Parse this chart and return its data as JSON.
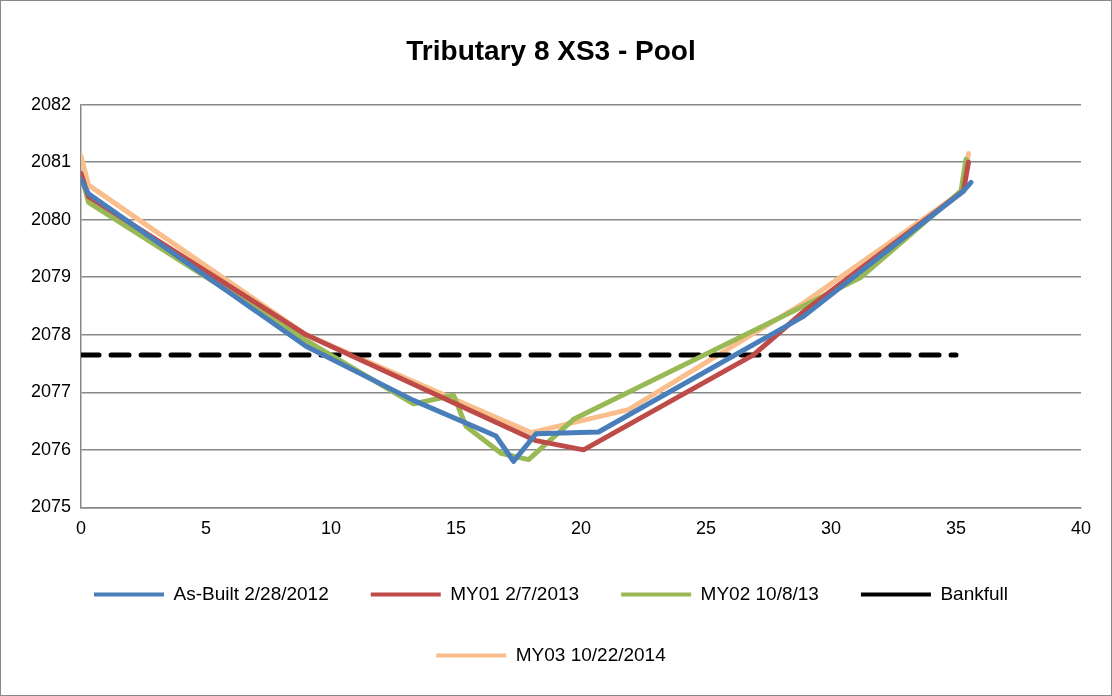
{
  "chart_data": {
    "type": "line",
    "title": "Tributary 8 XS3 - Pool",
    "xlim": [
      0,
      40
    ],
    "xticks": [
      0,
      5,
      10,
      15,
      20,
      25,
      30,
      35,
      40
    ],
    "ylim": [
      2075,
      2082
    ],
    "yticks": [
      2075,
      2076,
      2077,
      2078,
      2079,
      2080,
      2081,
      2082
    ],
    "grid": "y",
    "legend": "bottom",
    "marker": "none",
    "series": [
      {
        "name": "As-Built 2/28/2012",
        "color": "#4a7ebb",
        "line_style": "solid",
        "x": [
          0,
          0.3,
          9,
          13.3,
          16.6,
          17.3,
          18.2,
          20.7,
          28.9,
          35.3,
          35.6
        ],
        "values": [
          2080.7,
          2080.45,
          2077.8,
          2076.86,
          2076.24,
          2075.8,
          2076.28,
          2076.31,
          2078.32,
          2080.5,
          2080.65
        ]
      },
      {
        "name": "MY01 2/7/2013",
        "color": "#be4b48",
        "line_style": "solid",
        "x": [
          0,
          0.3,
          9,
          18.2,
          20.1,
          26.9,
          28.9,
          35.3,
          35.5
        ],
        "values": [
          2080.8,
          2080.4,
          2078.0,
          2076.16,
          2076.0,
          2077.65,
          2078.4,
          2080.5,
          2081.0
        ]
      },
      {
        "name": "MY02 10/8/13",
        "color": "#98b954",
        "line_style": "solid",
        "x": [
          0,
          0.3,
          9,
          13.3,
          14.9,
          15.4,
          16.8,
          17.9,
          19.7,
          28.9,
          31.2,
          35.2,
          35.4
        ],
        "values": [
          2080.8,
          2080.3,
          2077.9,
          2076.8,
          2076.95,
          2076.41,
          2075.94,
          2075.83,
          2076.53,
          2078.5,
          2079.0,
          2080.5,
          2081.05
        ]
      },
      {
        "name": "Bankfull",
        "color": "#000000",
        "line_style": "dashed",
        "x": [
          0,
          35
        ],
        "values": [
          2077.65,
          2077.65
        ]
      },
      {
        "name": "MY03 10/22/2014",
        "color": "#f9be8c",
        "line_style": "solid",
        "x": [
          0,
          0.3,
          9,
          18,
          21.9,
          28.9,
          35.3,
          35.5
        ],
        "values": [
          2081.1,
          2080.6,
          2078.0,
          2076.3,
          2076.7,
          2078.55,
          2080.5,
          2081.15
        ]
      }
    ]
  }
}
